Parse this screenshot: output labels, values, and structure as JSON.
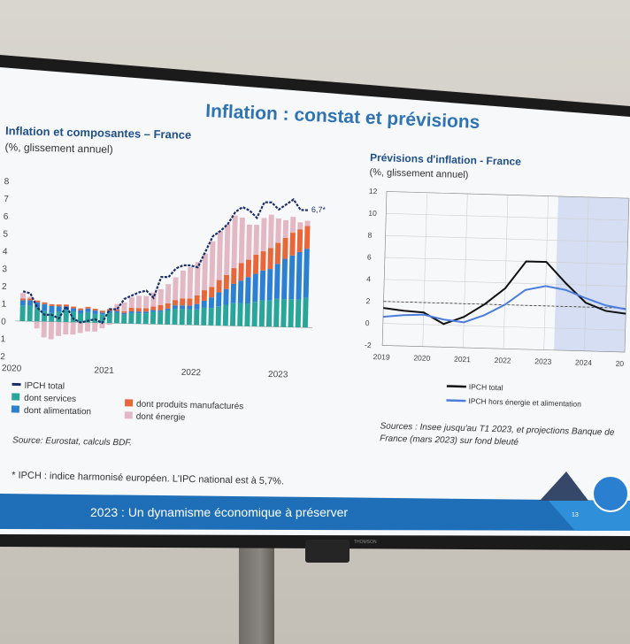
{
  "slide": {
    "title": "Inflation : constat et prévisions",
    "footer_text": "2023 : Un dynamisme économique à préserver",
    "page_number": "13",
    "brand": "THOMSON",
    "footnote": "* IPCH : indice harmonisé européen. L'IPC national est à 5,7%.",
    "colors": {
      "title_blue": "#2e74b5",
      "footer_blue": "#1f6fb8",
      "footer_light": "#2f8fd8"
    }
  },
  "left_chart": {
    "title": "Inflation et composantes – France",
    "subtitle": "(%, glissement annuel)",
    "source": "Source: Eurostat, calculs BDF.",
    "annotation": "6,7*",
    "y_ticks": [
      "8",
      "7",
      "6",
      "5",
      "4",
      "3",
      "2",
      "1",
      "0",
      "1",
      "2"
    ],
    "x_ticks": [
      "2020",
      "2021",
      "2022",
      "2023"
    ],
    "legend": {
      "total": "IPCH total",
      "services": "dont services",
      "alimentation": "dont alimentation",
      "manufactures": "dont produits manufacturés",
      "energie": "dont énergie"
    }
  },
  "right_chart": {
    "title": "Prévisions d'inflation - France",
    "subtitle": "(%, glissement annuel)",
    "source_line1": "Sources : Insee jusqu'au T1 2023, et projections Banque de",
    "source_line2": "France (mars 2023) sur fond bleuté",
    "y_ticks": [
      "12",
      "10",
      "8",
      "6",
      "4",
      "2",
      "0",
      "-2"
    ],
    "x_ticks": [
      "2019",
      "2020",
      "2021",
      "2022",
      "2023",
      "2024",
      "20"
    ],
    "legend": {
      "total": "IPCH total",
      "core": "IPCH hors énergie et alimentation"
    }
  },
  "chart_data": [
    {
      "type": "bar",
      "title": "Inflation et composantes – France",
      "ylabel": "(%, glissement annuel)",
      "ylim": [
        -2,
        8
      ],
      "x_start": "2020-01",
      "series": [
        {
          "name": "dont services",
          "color": "#2aa59a",
          "values": [
            0.9,
            0.9,
            0.8,
            0.6,
            0.5,
            0.6,
            0.7,
            0.6,
            0.5,
            0.6,
            0.5,
            0.5,
            0.6,
            0.6,
            0.5,
            0.6,
            0.6,
            0.6,
            0.7,
            0.7,
            0.8,
            0.9,
            0.9,
            0.9,
            0.9,
            1.0,
            1.0,
            1.1,
            1.2,
            1.3,
            1.3,
            1.3,
            1.4,
            1.5,
            1.5,
            1.6,
            1.6,
            1.6,
            1.6,
            1.7
          ]
        },
        {
          "name": "dont alimentation",
          "color": "#2c7fd1",
          "values": [
            0.3,
            0.3,
            0.3,
            0.4,
            0.4,
            0.3,
            0.2,
            0.2,
            0.2,
            0.2,
            0.2,
            0.1,
            0.1,
            0.1,
            0.1,
            0.1,
            0.1,
            0.1,
            0.1,
            0.1,
            0.1,
            0.2,
            0.2,
            0.2,
            0.3,
            0.4,
            0.6,
            0.8,
            0.9,
            1.1,
            1.3,
            1.5,
            1.6,
            1.7,
            1.8,
            2.0,
            2.3,
            2.5,
            2.7,
            2.8
          ]
        },
        {
          "name": "dont produits manufacturés",
          "color": "#e8673a",
          "values": [
            0.1,
            0.1,
            0.1,
            0.1,
            0.1,
            0.1,
            0.1,
            0.1,
            0.1,
            0.1,
            0.1,
            0.1,
            0.1,
            0.1,
            0.1,
            0.2,
            0.2,
            0.2,
            0.2,
            0.3,
            0.3,
            0.3,
            0.4,
            0.4,
            0.5,
            0.6,
            0.6,
            0.7,
            0.8,
            0.9,
            1.0,
            1.0,
            1.1,
            1.1,
            1.2,
            1.2,
            1.2,
            1.3,
            1.3,
            1.3
          ]
        },
        {
          "name": "dont énergie",
          "color": "#e2b8c5",
          "values": [
            0.3,
            0.1,
            -0.4,
            -0.9,
            -1.0,
            -0.8,
            -0.7,
            -0.7,
            -0.6,
            -0.5,
            -0.5,
            -0.3,
            -0.1,
            0.3,
            0.5,
            0.6,
            0.7,
            0.7,
            0.8,
            0.9,
            1.1,
            1.3,
            1.6,
            1.8,
            1.9,
            2.1,
            2.6,
            2.8,
            2.9,
            3.0,
            2.6,
            2.0,
            1.7,
            1.9,
            1.9,
            1.4,
            1.0,
            0.9,
            0.4,
            0.3
          ]
        }
      ],
      "line": {
        "name": "IPCH total",
        "color": "#1a2e6a",
        "values": [
          1.7,
          1.6,
          0.8,
          0.4,
          0.4,
          0.2,
          0.9,
          0.2,
          0.0,
          0.1,
          0.2,
          0.0,
          0.8,
          0.8,
          1.4,
          1.6,
          1.8,
          1.9,
          1.5,
          2.7,
          2.7,
          3.2,
          3.4,
          3.4,
          3.3,
          4.2,
          5.1,
          5.4,
          5.8,
          6.5,
          6.8,
          6.6,
          6.2,
          7.1,
          7.1,
          6.7,
          7.0,
          7.3,
          6.7,
          6.7
        ]
      }
    },
    {
      "type": "line",
      "title": "Prévisions d'inflation - France",
      "ylabel": "(%, glissement annuel)",
      "ylim": [
        -2,
        12
      ],
      "x": [
        "2019",
        "2019.5",
        "2020",
        "2020.5",
        "2021",
        "2021.5",
        "2022",
        "2022.5",
        "2023",
        "2023.5",
        "2024",
        "2024.5",
        "2025"
      ],
      "forecast_start": "2023.25",
      "series": [
        {
          "name": "IPCH total",
          "color": "#111111",
          "values": [
            1.4,
            1.2,
            1.1,
            0.1,
            0.8,
            2.0,
            3.5,
            6.0,
            6.0,
            4.1,
            2.4,
            1.7,
            1.5
          ]
        },
        {
          "name": "IPCH hors énergie et alimentation",
          "color": "#4a7ddd",
          "values": [
            0.6,
            0.8,
            0.9,
            0.5,
            0.3,
            1.0,
            2.0,
            3.4,
            3.8,
            3.5,
            2.8,
            2.2,
            1.9
          ]
        }
      ],
      "reference_line": 2
    }
  ]
}
